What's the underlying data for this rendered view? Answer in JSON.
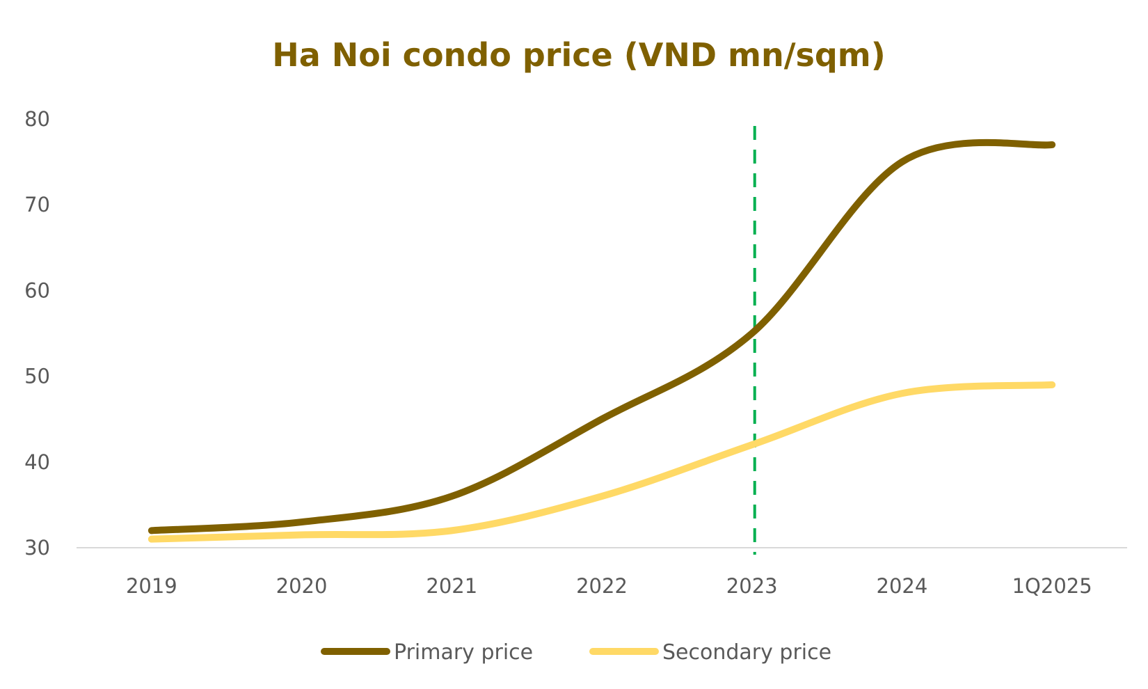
{
  "chart_data": {
    "type": "line",
    "title": "Ha Noi condo price (VND mn/sqm)",
    "xlabel": "",
    "ylabel": "",
    "categories": [
      "2019",
      "2020",
      "2021",
      "2022",
      "2023",
      "2024",
      "1Q2025"
    ],
    "ylim": [
      30,
      80
    ],
    "yticks": [
      30,
      40,
      50,
      60,
      70,
      80
    ],
    "grid": false,
    "smooth": true,
    "legend_position": "bottom",
    "series": [
      {
        "name": "Primary price",
        "color": "#7f6000",
        "values": [
          32,
          33,
          36,
          45,
          55,
          75,
          77
        ]
      },
      {
        "name": "Secondary price",
        "color": "#ffd966",
        "values": [
          31,
          31.5,
          32,
          36,
          42,
          48,
          49
        ]
      }
    ],
    "annotations": [
      {
        "type": "vertical-dashed-line",
        "at_category": "2023",
        "color": "#00b050"
      }
    ]
  }
}
